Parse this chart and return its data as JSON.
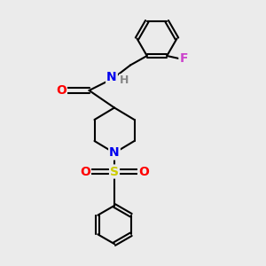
{
  "background_color": "#ebebeb",
  "bond_color": "#000000",
  "atom_colors": {
    "N": "#0000ee",
    "O": "#ff0000",
    "S": "#cccc00",
    "F": "#cc44cc",
    "H": "#888888"
  },
  "figsize": [
    3.0,
    3.0
  ],
  "dpi": 100
}
